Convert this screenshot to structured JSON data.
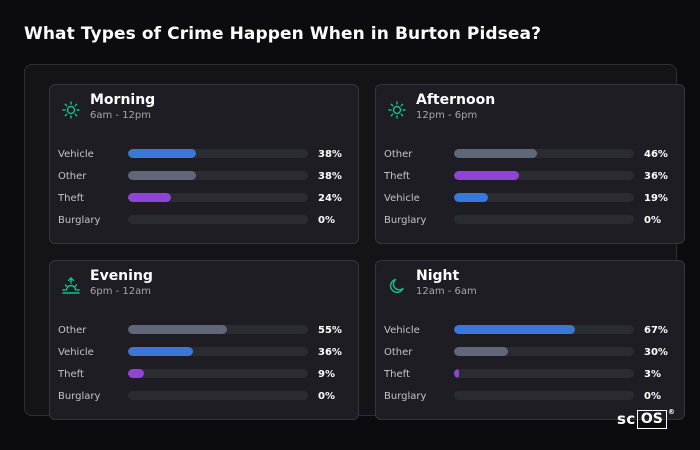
{
  "title": "What Types of Crime Happen When in Burton Pidsea?",
  "colors": {
    "Vehicle": "#3a78d8",
    "Other": "#5f6778",
    "Theft": "#8e44d4",
    "Burglary": "#2b2b32",
    "icon_accent": "#19c08d"
  },
  "chart_data": [
    {
      "type": "bar",
      "title": "Morning",
      "subtitle": "6am - 12pm",
      "icon": "sun-icon",
      "categories": [
        "Vehicle",
        "Other",
        "Theft",
        "Burglary"
      ],
      "values": [
        38,
        38,
        24,
        0
      ],
      "value_labels": [
        "38%",
        "38%",
        "24%",
        "0%"
      ],
      "xlim": [
        0,
        100
      ]
    },
    {
      "type": "bar",
      "title": "Afternoon",
      "subtitle": "12pm - 6pm",
      "icon": "sun-icon",
      "categories": [
        "Other",
        "Theft",
        "Vehicle",
        "Burglary"
      ],
      "values": [
        46,
        36,
        19,
        0
      ],
      "value_labels": [
        "46%",
        "36%",
        "19%",
        "0%"
      ],
      "xlim": [
        0,
        100
      ]
    },
    {
      "type": "bar",
      "title": "Evening",
      "subtitle": "6pm - 12am",
      "icon": "sunset-icon",
      "categories": [
        "Other",
        "Vehicle",
        "Theft",
        "Burglary"
      ],
      "values": [
        55,
        36,
        9,
        0
      ],
      "value_labels": [
        "55%",
        "36%",
        "9%",
        "0%"
      ],
      "xlim": [
        0,
        100
      ]
    },
    {
      "type": "bar",
      "title": "Night",
      "subtitle": "12am - 6am",
      "icon": "moon-icon",
      "categories": [
        "Vehicle",
        "Other",
        "Theft",
        "Burglary"
      ],
      "values": [
        67,
        30,
        3,
        0
      ],
      "value_labels": [
        "67%",
        "30%",
        "3%",
        "0%"
      ],
      "xlim": [
        0,
        100
      ]
    }
  ],
  "logo": {
    "part1": "sc",
    "part2": "OS",
    "mark": "®"
  }
}
